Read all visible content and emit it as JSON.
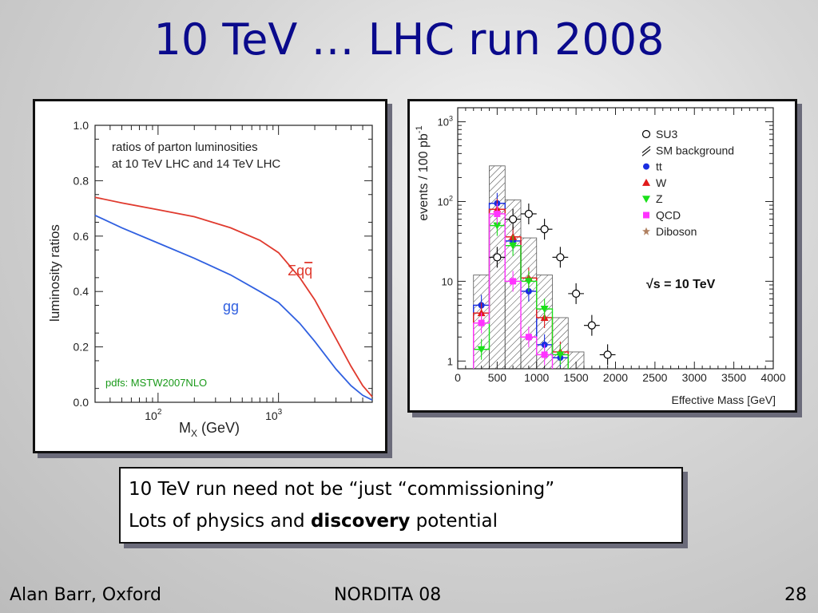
{
  "slide": {
    "title": "10 TeV … LHC run 2008",
    "text_lines": [
      {
        "parts": [
          {
            "text": "10 TeV run need not be “just “commissioning”",
            "bold": false
          }
        ]
      },
      {
        "parts": [
          {
            "text": "Lots of physics and ",
            "bold": false
          },
          {
            "text": "discovery",
            "bold": true
          },
          {
            "text": " potential",
            "bold": false
          }
        ]
      }
    ],
    "footer": {
      "left": "Alan Barr, Oxford",
      "center": "NORDITA 08",
      "right": "28"
    }
  },
  "colors": {
    "title": "#0a0a8c",
    "red_curve": "#e03a2e",
    "blue_curve": "#3060e0",
    "green_text": "#1a9a1a"
  },
  "chart_data": [
    {
      "type": "line",
      "annotation_lines": [
        "ratios of parton luminosities",
        "at 10 TeV LHC and 14 TeV LHC"
      ],
      "annotation_pdf": "pdfs: MSTW2007NLO",
      "xlabel": "M",
      "xlabel_sub": "X",
      "xlabel_unit": " (GeV)",
      "ylabel": "luminosity ratios",
      "xscale": "log",
      "xlim": [
        30,
        6000
      ],
      "ylim": [
        0.0,
        1.0
      ],
      "yticks": [
        "0.0",
        "0.2",
        "0.4",
        "0.6",
        "0.8",
        "1.0"
      ],
      "xticks": [
        {
          "value": 100,
          "base": "10",
          "exp": "2"
        },
        {
          "value": 1000,
          "base": "10",
          "exp": "3"
        }
      ],
      "series": [
        {
          "name": "Σqq̄",
          "name_base": "Σq",
          "name_bar": "q",
          "color": "#e03a2e",
          "x": [
            30,
            50,
            100,
            200,
            400,
            700,
            1000,
            1500,
            2000,
            3000,
            4000,
            5000,
            6000
          ],
          "y": [
            0.74,
            0.72,
            0.695,
            0.67,
            0.63,
            0.585,
            0.54,
            0.45,
            0.37,
            0.23,
            0.13,
            0.06,
            0.02
          ]
        },
        {
          "name": "gg",
          "color": "#3060e0",
          "x": [
            30,
            50,
            100,
            200,
            400,
            700,
            1000,
            1500,
            2000,
            3000,
            4000,
            5000,
            6000
          ],
          "y": [
            0.675,
            0.63,
            0.575,
            0.52,
            0.46,
            0.4,
            0.36,
            0.285,
            0.22,
            0.12,
            0.06,
            0.025,
            0.008
          ]
        }
      ]
    },
    {
      "type": "bar",
      "xlabel": "Effective Mass [GeV]",
      "ylabel": "events / 100 pb",
      "ylabel_sup": "-1",
      "annotation": "√s = 10 TeV",
      "xlim": [
        0,
        4000
      ],
      "ylim": [
        0.8,
        1500
      ],
      "yscale": "log",
      "xticks": [
        "0",
        "500",
        "1000",
        "1500",
        "2000",
        "2500",
        "3000",
        "3500",
        "4000"
      ],
      "yticks": [
        {
          "value": 1,
          "base": "1",
          "exp": ""
        },
        {
          "value": 10,
          "base": "10",
          "exp": ""
        },
        {
          "value": 100,
          "base": "10",
          "exp": "2"
        },
        {
          "value": 1000,
          "base": "10",
          "exp": "3"
        }
      ],
      "legend_placement": "top-right",
      "legend": [
        {
          "label": "SU3",
          "marker": "open-circle",
          "color": "#000000"
        },
        {
          "label": "SM background",
          "marker": "hatch",
          "color": "#000000"
        },
        {
          "label": "tt",
          "marker": "circle",
          "color": "#1a2ee0"
        },
        {
          "label": "W",
          "marker": "triangle-up",
          "color": "#e01a1a"
        },
        {
          "label": "Z",
          "marker": "triangle-down",
          "color": "#1ae01a"
        },
        {
          "label": "QCD",
          "marker": "square",
          "color": "#ff33ff"
        },
        {
          "label": "Diboson",
          "marker": "star",
          "color": "#b08060"
        }
      ],
      "sm_background": {
        "bin_edges": [
          200,
          400,
          600,
          800,
          1000,
          1200,
          1400,
          1600
        ],
        "values": [
          12,
          280,
          105,
          35,
          12,
          3.5,
          1.3
        ]
      },
      "series": [
        {
          "name": "tt",
          "color": "#1a2ee0",
          "x": [
            300,
            500,
            700,
            900,
            1100,
            1300
          ],
          "y": [
            5,
            95,
            32,
            7.5,
            1.6,
            1.1
          ]
        },
        {
          "name": "W",
          "color": "#e01a1a",
          "x": [
            300,
            500,
            700,
            900,
            1100,
            1300
          ],
          "y": [
            4,
            80,
            36,
            11,
            3.5,
            1.3
          ]
        },
        {
          "name": "Z",
          "color": "#1ae01a",
          "x": [
            300,
            500,
            700,
            900,
            1100,
            1300
          ],
          "y": [
            1.4,
            50,
            28,
            10,
            4.5,
            1.2
          ]
        },
        {
          "name": "QCD",
          "color": "#ff33ff",
          "x": [
            300,
            500,
            700,
            900,
            1100
          ],
          "y": [
            3,
            70,
            10,
            2,
            1.2
          ]
        },
        {
          "name": "SU3",
          "color": "#000000",
          "x": [
            500,
            700,
            900,
            1100,
            1300,
            1500,
            1700,
            1900
          ],
          "y": [
            20,
            60,
            70,
            45,
            20,
            7,
            2.8,
            1.2
          ]
        }
      ]
    }
  ]
}
